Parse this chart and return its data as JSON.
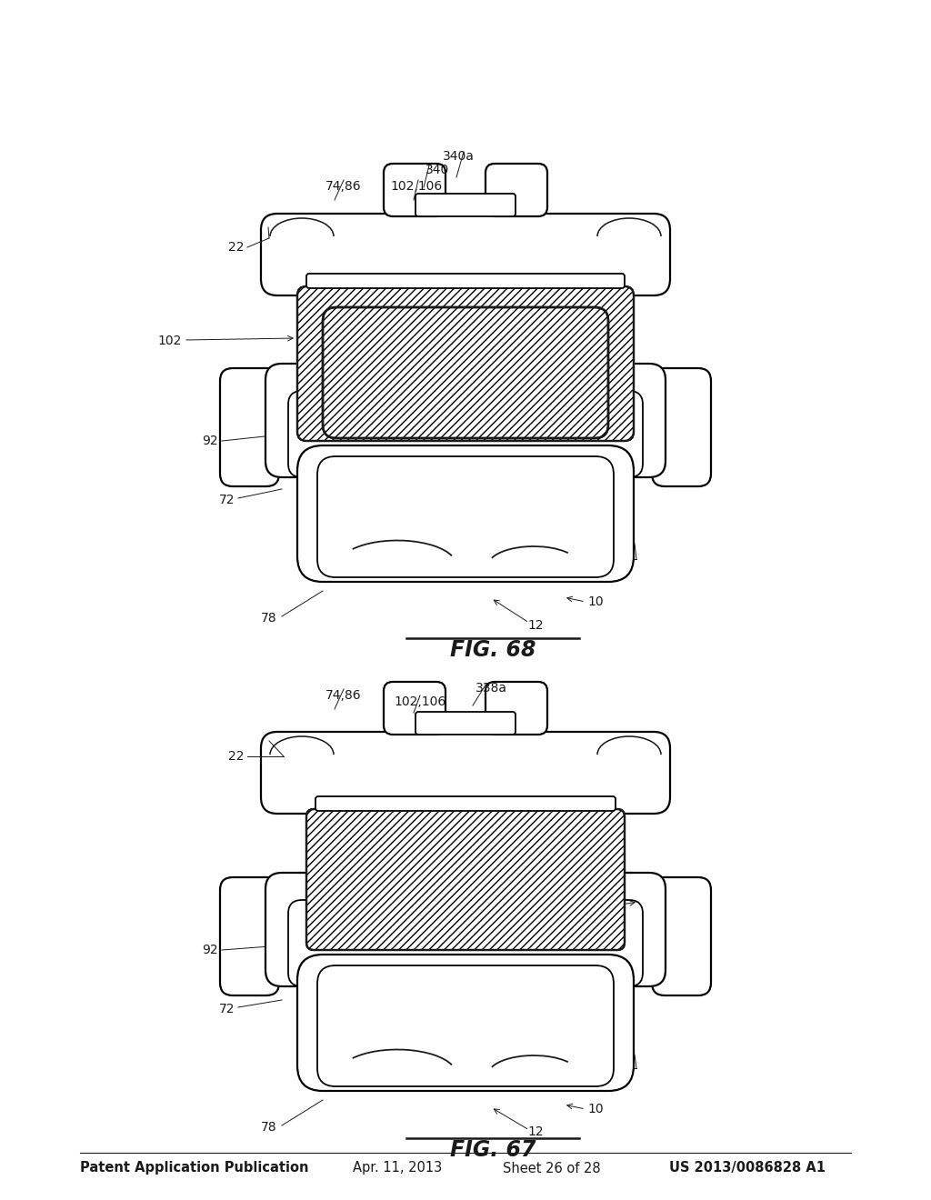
{
  "bg_color": "#ffffff",
  "header_text": "Patent Application Publication",
  "header_date": "Apr. 11, 2013",
  "header_sheet": "Sheet 26 of 28",
  "header_patent": "US 2013/0086828 A1",
  "header_fontsize": 10.5,
  "fig67_title": "FIG. 67",
  "fig68_title": "FIG. 68",
  "fig_title_fontsize": 17,
  "label_fontsize": 10,
  "black": "#1a1a1a",
  "lw_main": 1.6
}
